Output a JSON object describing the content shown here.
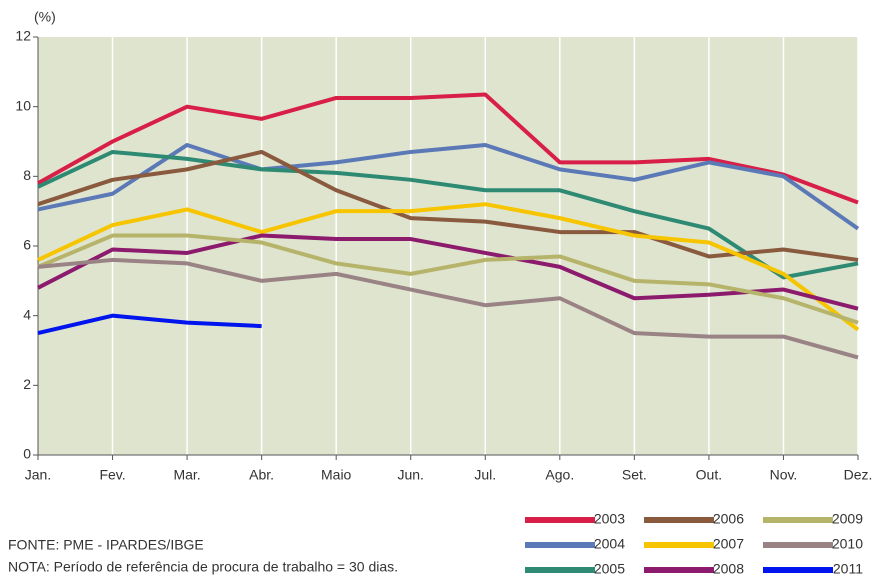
{
  "chart_data": {
    "type": "line",
    "y_label": "(%)",
    "categories": [
      "Jan.",
      "Fev.",
      "Mar.",
      "Abr.",
      "Maio",
      "Jun.",
      "Jul.",
      "Ago.",
      "Set.",
      "Out.",
      "Nov.",
      "Dez."
    ],
    "ylim": [
      0,
      12
    ],
    "yticks": [
      0,
      2,
      4,
      6,
      8,
      10,
      12
    ],
    "background": "#dfe4cf",
    "grid": "vertical",
    "series": [
      {
        "name": "2003",
        "color": "#d81f47",
        "values": [
          7.8,
          9.0,
          10.0,
          9.65,
          10.25,
          10.25,
          10.35,
          8.4,
          8.4,
          8.5,
          8.05,
          7.25
        ]
      },
      {
        "name": "2004",
        "color": "#5b79b6",
        "values": [
          7.05,
          7.5,
          8.9,
          8.2,
          8.4,
          8.7,
          8.9,
          8.2,
          7.9,
          8.4,
          8.0,
          6.5
        ]
      },
      {
        "name": "2005",
        "color": "#2f8a73",
        "values": [
          7.7,
          8.7,
          8.5,
          8.2,
          8.1,
          7.9,
          7.6,
          7.6,
          7.0,
          6.5,
          5.1,
          5.5
        ]
      },
      {
        "name": "2006",
        "color": "#8a5a3e",
        "values": [
          7.2,
          7.9,
          8.2,
          8.7,
          7.6,
          6.8,
          6.7,
          6.4,
          6.4,
          5.7,
          5.9,
          5.6
        ]
      },
      {
        "name": "2007",
        "color": "#f6c500",
        "values": [
          5.6,
          6.6,
          7.05,
          6.4,
          7.0,
          7.0,
          7.2,
          6.8,
          6.3,
          6.1,
          5.2,
          3.6
        ]
      },
      {
        "name": "2008",
        "color": "#8c1b6e",
        "values": [
          4.8,
          5.9,
          5.8,
          6.3,
          6.2,
          6.2,
          5.8,
          5.4,
          4.5,
          4.6,
          4.75,
          4.2
        ]
      },
      {
        "name": "2009",
        "color": "#b6b46a",
        "values": [
          5.4,
          6.3,
          6.3,
          6.1,
          5.5,
          5.2,
          5.6,
          5.7,
          5.0,
          4.9,
          4.5,
          3.8
        ]
      },
      {
        "name": "2010",
        "color": "#9a8384",
        "values": [
          5.4,
          5.6,
          5.5,
          5.0,
          5.2,
          4.75,
          4.3,
          4.5,
          3.5,
          3.4,
          3.4,
          2.8
        ]
      },
      {
        "name": "2011",
        "color": "#0015ee",
        "values": [
          3.5,
          4.0,
          3.8,
          3.7,
          null,
          null,
          null,
          null,
          null,
          null,
          null,
          null
        ]
      }
    ],
    "source": "FONTE: PME - IPARDES/IBGE",
    "note": "NOTA: Período de referência de procura de trabalho = 30 dias."
  }
}
